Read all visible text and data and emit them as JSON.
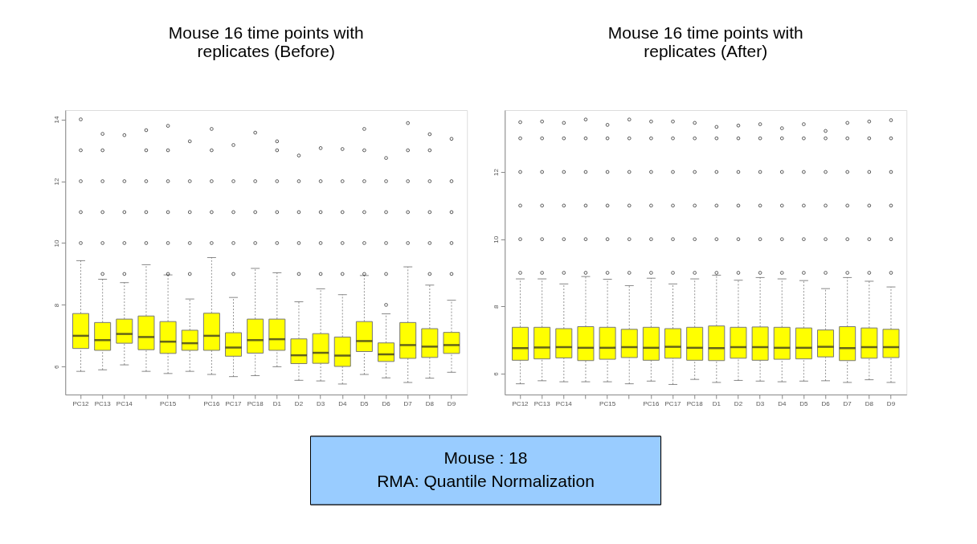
{
  "chart_data": [
    {
      "type": "box",
      "title": "Mouse 16 time points with replicates (Before)",
      "categories": [
        "PC12",
        "PC13",
        "PC14",
        null,
        "PC15",
        null,
        "PC16",
        "PC17",
        "PC18",
        "D1",
        "D2",
        "D3",
        "D4",
        "D5",
        "D6",
        "D7",
        "D8",
        "D9"
      ],
      "ylim": [
        5.1,
        14.3
      ],
      "yticks": [
        6,
        8,
        10,
        12,
        14
      ],
      "grid": false,
      "series": [
        {
          "color": "#ffff00",
          "boxes": [
            {
              "low": 5.85,
              "q1": 6.59,
              "median": 7.0,
              "q3": 7.72,
              "high": 9.43,
              "outliers": [
                10,
                11,
                12,
                13,
                14.0
              ]
            },
            {
              "low": 5.9,
              "q1": 6.53,
              "median": 6.86,
              "q3": 7.43,
              "high": 8.83,
              "outliers": [
                9,
                10,
                11,
                12,
                13,
                13.53
              ]
            },
            {
              "low": 6.06,
              "q1": 6.76,
              "median": 7.06,
              "q3": 7.54,
              "high": 8.72,
              "outliers": [
                9,
                10,
                11,
                12,
                13.49
              ]
            },
            {
              "low": 5.85,
              "q1": 6.55,
              "median": 6.96,
              "q3": 7.64,
              "high": 9.3,
              "outliers": [
                10,
                11,
                12,
                13,
                13.65
              ]
            },
            {
              "low": 5.78,
              "q1": 6.43,
              "median": 6.81,
              "q3": 7.46,
              "high": 8.97,
              "outliers": [
                9,
                10,
                11,
                12,
                13,
                13.79
              ]
            },
            {
              "low": 5.85,
              "q1": 6.53,
              "median": 6.76,
              "q3": 7.18,
              "high": 8.19,
              "outliers": [
                9,
                10,
                11,
                12,
                13.29
              ]
            },
            {
              "low": 5.75,
              "q1": 6.53,
              "median": 7.0,
              "q3": 7.73,
              "high": 9.53,
              "outliers": [
                10,
                11,
                12,
                13,
                13.69
              ]
            },
            {
              "low": 5.68,
              "q1": 6.34,
              "median": 6.62,
              "q3": 7.1,
              "high": 8.24,
              "outliers": [
                9,
                10,
                11,
                12,
                13.17
              ]
            },
            {
              "low": 5.71,
              "q1": 6.44,
              "median": 6.86,
              "q3": 7.54,
              "high": 9.18,
              "outliers": [
                10,
                11,
                12,
                13.57
              ]
            },
            {
              "low": 6.0,
              "q1": 6.53,
              "median": 6.89,
              "q3": 7.54,
              "high": 9.04,
              "outliers": [
                10,
                11,
                12,
                13,
                13.29
              ]
            },
            {
              "low": 5.56,
              "q1": 6.1,
              "median": 6.37,
              "q3": 6.9,
              "high": 8.1,
              "outliers": [
                9,
                10,
                11,
                12,
                12.83
              ]
            },
            {
              "low": 5.54,
              "q1": 6.11,
              "median": 6.45,
              "q3": 7.07,
              "high": 8.52,
              "outliers": [
                9,
                10,
                11,
                12,
                13.07
              ]
            },
            {
              "low": 5.44,
              "q1": 6.01,
              "median": 6.36,
              "q3": 6.96,
              "high": 8.33,
              "outliers": [
                9,
                10,
                11,
                12,
                13.04
              ]
            },
            {
              "low": 5.75,
              "q1": 6.49,
              "median": 6.83,
              "q3": 7.46,
              "high": 8.95,
              "outliers": [
                9,
                10,
                11,
                12,
                13,
                13.69
              ]
            },
            {
              "low": 5.64,
              "q1": 6.17,
              "median": 6.4,
              "q3": 6.77,
              "high": 7.71,
              "outliers": [
                8,
                9,
                10,
                11,
                12,
                12.75
              ]
            },
            {
              "low": 5.49,
              "q1": 6.27,
              "median": 6.7,
              "q3": 7.43,
              "high": 9.23,
              "outliers": [
                10,
                11,
                12,
                13,
                13.88
              ]
            },
            {
              "low": 5.63,
              "q1": 6.3,
              "median": 6.65,
              "q3": 7.23,
              "high": 8.64,
              "outliers": [
                9,
                10,
                11,
                12,
                13,
                13.52
              ]
            },
            {
              "low": 5.82,
              "q1": 6.43,
              "median": 6.7,
              "q3": 7.11,
              "high": 8.15,
              "outliers": [
                9,
                10,
                11,
                12,
                13.37
              ]
            }
          ]
        }
      ]
    },
    {
      "type": "box",
      "title": "Mouse 16 time points with replicates (After)",
      "categories": [
        "PC12",
        "PC13",
        "PC14",
        null,
        "PC15",
        null,
        "PC16",
        "PC17",
        "PC18",
        "D1",
        "D2",
        "D3",
        "D4",
        "D5",
        "D6",
        "D7",
        "D8",
        "D9"
      ],
      "ylim": [
        5.38,
        13.84
      ],
      "yticks": [
        6,
        8,
        10,
        12
      ],
      "grid": false,
      "series": [
        {
          "color": "#ffff00",
          "boxes": [
            {
              "low": 5.7,
              "q1": 6.4,
              "median": 6.76,
              "q3": 7.38,
              "high": 8.82,
              "outliers": [
                9,
                10,
                11,
                12,
                13,
                13.48
              ]
            },
            {
              "low": 5.79,
              "q1": 6.44,
              "median": 6.78,
              "q3": 7.38,
              "high": 8.82,
              "outliers": [
                9,
                10,
                11,
                12,
                13,
                13.5
              ]
            },
            {
              "low": 5.76,
              "q1": 6.47,
              "median": 6.79,
              "q3": 7.34,
              "high": 8.67,
              "outliers": [
                9,
                10,
                11,
                12,
                13,
                13.46
              ]
            },
            {
              "low": 5.76,
              "q1": 6.39,
              "median": 6.77,
              "q3": 7.4,
              "high": 8.89,
              "outliers": [
                9,
                10,
                11,
                12,
                13,
                13.56
              ]
            },
            {
              "low": 5.76,
              "q1": 6.43,
              "median": 6.77,
              "q3": 7.38,
              "high": 8.81,
              "outliers": [
                9,
                10,
                11,
                12,
                13,
                13.4
              ]
            },
            {
              "low": 5.7,
              "q1": 6.48,
              "median": 6.79,
              "q3": 7.32,
              "high": 8.62,
              "outliers": [
                9,
                10,
                11,
                12,
                13,
                13.56
              ]
            },
            {
              "low": 5.78,
              "q1": 6.4,
              "median": 6.77,
              "q3": 7.38,
              "high": 8.84,
              "outliers": [
                9,
                10,
                11,
                12,
                13,
                13.5
              ]
            },
            {
              "low": 5.68,
              "q1": 6.46,
              "median": 6.8,
              "q3": 7.34,
              "high": 8.67,
              "outliers": [
                9,
                10,
                11,
                12,
                13,
                13.5
              ]
            },
            {
              "low": 5.83,
              "q1": 6.4,
              "median": 6.77,
              "q3": 7.38,
              "high": 8.82,
              "outliers": [
                9,
                10,
                11,
                12,
                13,
                13.46
              ]
            },
            {
              "low": 5.74,
              "q1": 6.39,
              "median": 6.76,
              "q3": 7.42,
              "high": 8.93,
              "outliers": [
                9,
                10,
                11,
                12,
                13,
                13.34
              ]
            },
            {
              "low": 5.8,
              "q1": 6.46,
              "median": 6.79,
              "q3": 7.38,
              "high": 8.78,
              "outliers": [
                9,
                10,
                11,
                12,
                13,
                13.38
              ]
            },
            {
              "low": 5.78,
              "q1": 6.4,
              "median": 6.79,
              "q3": 7.39,
              "high": 8.86,
              "outliers": [
                9,
                10,
                11,
                12,
                13,
                13.42
              ]
            },
            {
              "low": 5.76,
              "q1": 6.43,
              "median": 6.77,
              "q3": 7.38,
              "high": 8.82,
              "outliers": [
                9,
                10,
                11,
                12,
                13,
                13.3
              ]
            },
            {
              "low": 5.78,
              "q1": 6.44,
              "median": 6.77,
              "q3": 7.36,
              "high": 8.77,
              "outliers": [
                9,
                10,
                11,
                12,
                13,
                13.42
              ]
            },
            {
              "low": 5.79,
              "q1": 6.5,
              "median": 6.8,
              "q3": 7.3,
              "high": 8.53,
              "outliers": [
                9,
                10,
                11,
                12,
                13,
                13.22
              ]
            },
            {
              "low": 5.74,
              "q1": 6.39,
              "median": 6.76,
              "q3": 7.4,
              "high": 8.86,
              "outliers": [
                9,
                10,
                11,
                12,
                13,
                13.46
              ]
            },
            {
              "low": 5.82,
              "q1": 6.46,
              "median": 6.79,
              "q3": 7.36,
              "high": 8.75,
              "outliers": [
                9,
                10,
                11,
                12,
                13,
                13.5
              ]
            },
            {
              "low": 5.74,
              "q1": 6.48,
              "median": 6.79,
              "q3": 7.32,
              "high": 8.58,
              "outliers": [
                9,
                10,
                11,
                12,
                13,
                13.54
              ]
            }
          ]
        }
      ]
    },
    {
      "type": "other",
      "annotations": [
        "Mouse : 18",
        "RMA: Quantile Normalization"
      ]
    }
  ]
}
